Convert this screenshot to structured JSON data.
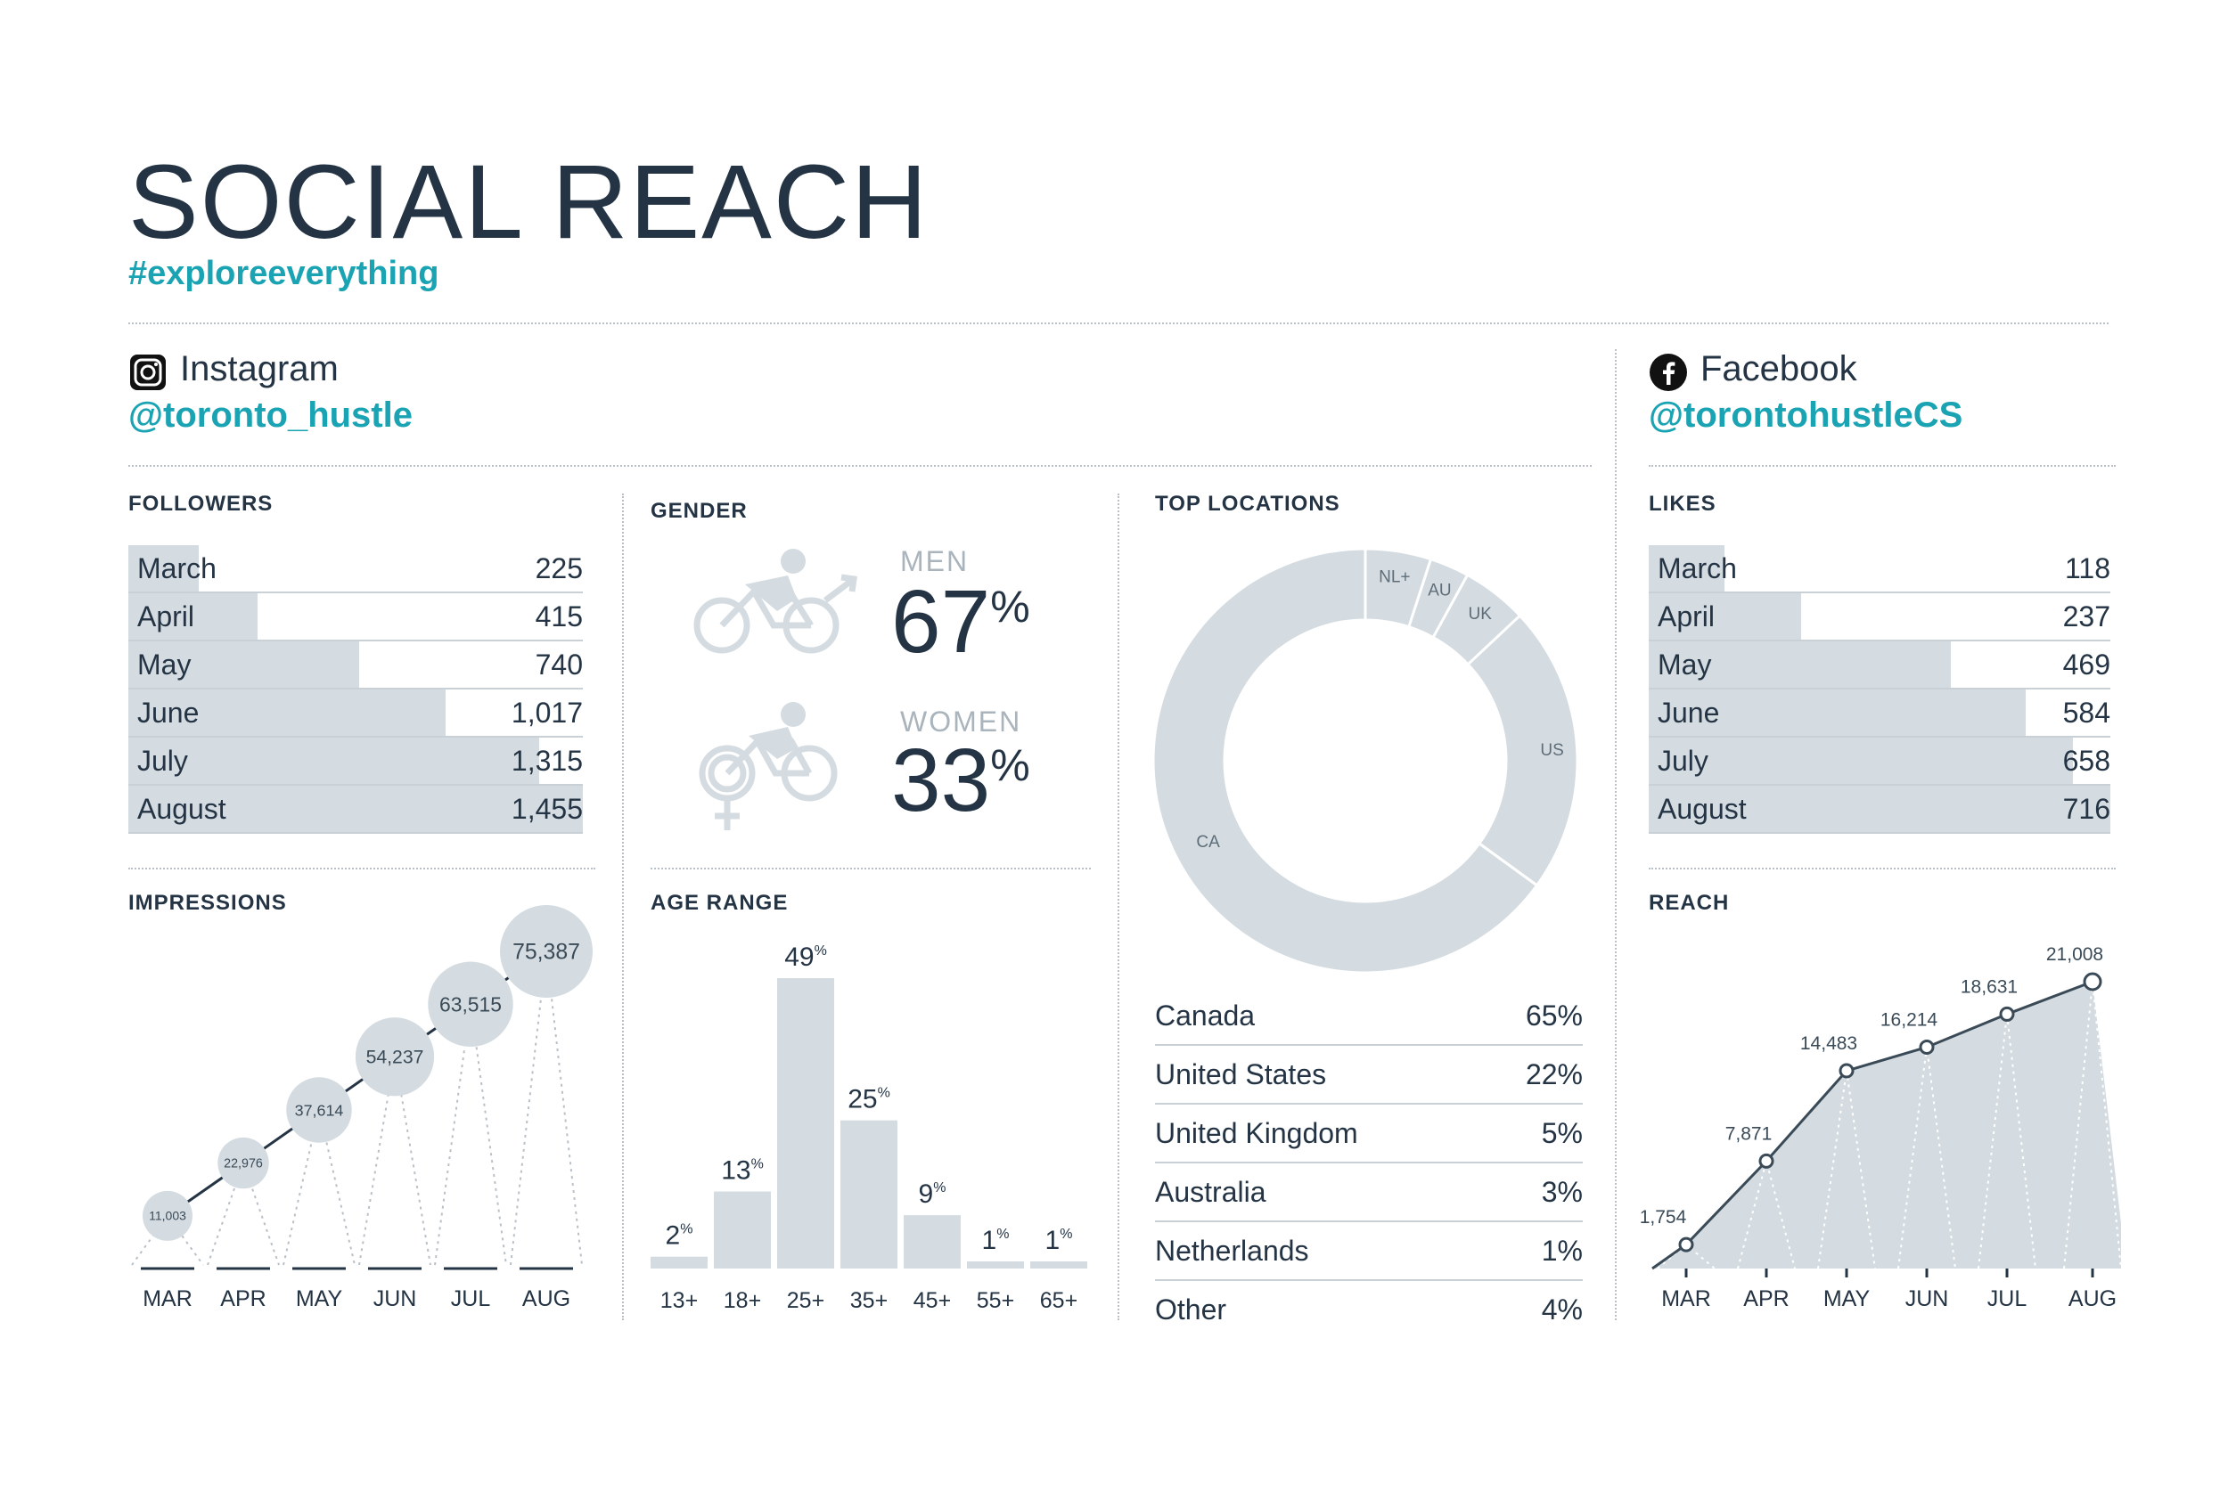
{
  "header": {
    "title": "SOCIAL REACH",
    "hashtag": "#exploreeverything"
  },
  "instagram": {
    "name": "Instagram",
    "handle": "@toronto_hustle"
  },
  "facebook": {
    "name": "Facebook",
    "handle": "@torontohustleCS"
  },
  "colors": {
    "accent": "#1aa3b3",
    "text": "#243444",
    "bar": "#d4dce1",
    "muted": "#a9b4bc"
  },
  "followers": {
    "heading": "FOLLOWERS",
    "items": [
      {
        "label": "March",
        "value": "225",
        "n": 225
      },
      {
        "label": "April",
        "value": "415",
        "n": 415
      },
      {
        "label": "May",
        "value": "740",
        "n": 740
      },
      {
        "label": "June",
        "value": "1,017",
        "n": 1017
      },
      {
        "label": "July",
        "value": "1,315",
        "n": 1315
      },
      {
        "label": "August",
        "value": "1,455",
        "n": 1455
      }
    ]
  },
  "likes": {
    "heading": "LIKES",
    "items": [
      {
        "label": "March",
        "value": "118",
        "n": 118
      },
      {
        "label": "April",
        "value": "237",
        "n": 237
      },
      {
        "label": "May",
        "value": "469",
        "n": 469
      },
      {
        "label": "June",
        "value": "584",
        "n": 584
      },
      {
        "label": "July",
        "value": "658",
        "n": 658
      },
      {
        "label": "August",
        "value": "716",
        "n": 716
      }
    ]
  },
  "gender": {
    "heading": "GENDER",
    "men": {
      "label": "MEN",
      "value": "67",
      "unit": "%"
    },
    "women": {
      "label": "WOMEN",
      "value": "33",
      "unit": "%"
    }
  },
  "locations": {
    "heading": "TOP LOCATIONS",
    "items": [
      {
        "label": "Canada",
        "value": "65%"
      },
      {
        "label": "United States",
        "value": "22%"
      },
      {
        "label": "United Kingdom",
        "value": "5%"
      },
      {
        "label": "Australia",
        "value": "3%"
      },
      {
        "label": "Netherlands",
        "value": "1%"
      },
      {
        "label": "Other",
        "value": "4%"
      }
    ]
  },
  "chart_data": [
    {
      "id": "impressions",
      "type": "scatter",
      "title": "IMPRESSIONS",
      "categories": [
        "MAR",
        "APR",
        "MAY",
        "JUN",
        "JUL",
        "AUG"
      ],
      "values": [
        11003,
        22976,
        37614,
        54237,
        63515,
        75387
      ],
      "labels": [
        "11,003",
        "22,976",
        "37,614",
        "54,237",
        "63,515",
        "75,387"
      ]
    },
    {
      "id": "age",
      "type": "bar",
      "title": "AGE RANGE",
      "categories": [
        "13+",
        "18+",
        "25+",
        "35+",
        "45+",
        "55+",
        "65+"
      ],
      "values": [
        2,
        13,
        49,
        25,
        9,
        1,
        1
      ],
      "labels": [
        "2",
        "13",
        "49",
        "25",
        "9",
        "1",
        "1"
      ],
      "unit": "%",
      "ylim": [
        0,
        49
      ]
    },
    {
      "id": "locations",
      "type": "pie",
      "title": "TOP LOCATIONS",
      "categories": [
        "NL+",
        "AU",
        "UK",
        "US",
        "CA"
      ],
      "values": [
        5,
        3,
        5,
        22,
        65
      ]
    },
    {
      "id": "reach",
      "type": "area",
      "title": "REACH",
      "categories": [
        "MAR",
        "APR",
        "MAY",
        "JUN",
        "JUL",
        "AUG"
      ],
      "values": [
        1754,
        7871,
        14483,
        16214,
        18631,
        21008
      ],
      "labels": [
        "1,754",
        "7,871",
        "14,483",
        "16,214",
        "18,631",
        "21,008"
      ],
      "ylim": [
        0,
        21008
      ]
    }
  ]
}
